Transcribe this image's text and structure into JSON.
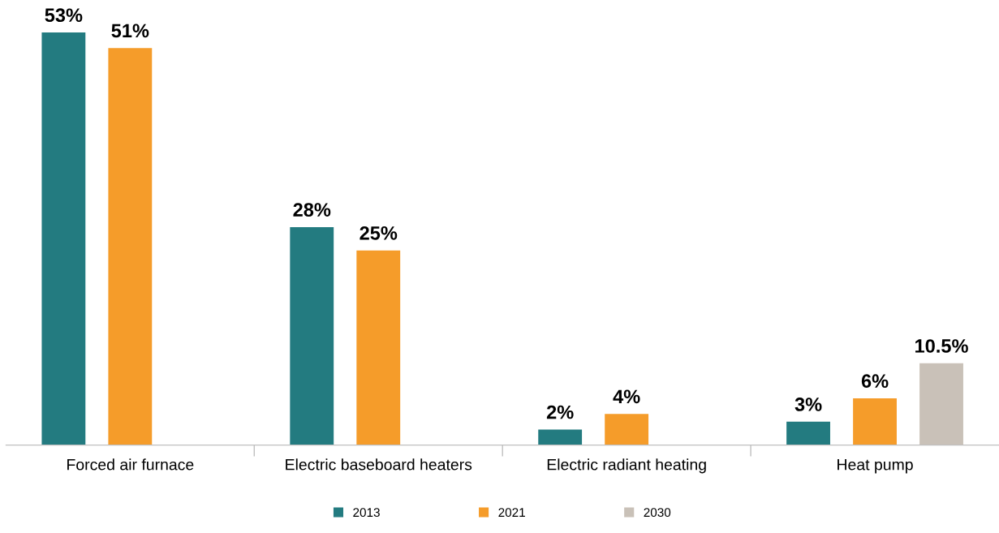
{
  "chart_data": {
    "type": "bar",
    "categories": [
      "Forced air furnace",
      "Electric baseboard heaters",
      "Electric radiant heating",
      "Heat pump"
    ],
    "series": [
      {
        "name": "2013",
        "color": "#237b80",
        "values": [
          53,
          28,
          2,
          3
        ],
        "value_labels": [
          "53%",
          "28%",
          "2%",
          "3%"
        ]
      },
      {
        "name": "2021",
        "color": "#f59c2a",
        "values": [
          51,
          25,
          4,
          6
        ],
        "value_labels": [
          "51%",
          "25%",
          "4%",
          "6%"
        ]
      },
      {
        "name": "2030",
        "color": "#c9c1b8",
        "values": [
          null,
          null,
          null,
          10.5
        ],
        "value_labels": [
          null,
          null,
          null,
          "10.5%"
        ]
      }
    ],
    "legend": "bottom",
    "grid": false,
    "tick_labels": "x"
  }
}
